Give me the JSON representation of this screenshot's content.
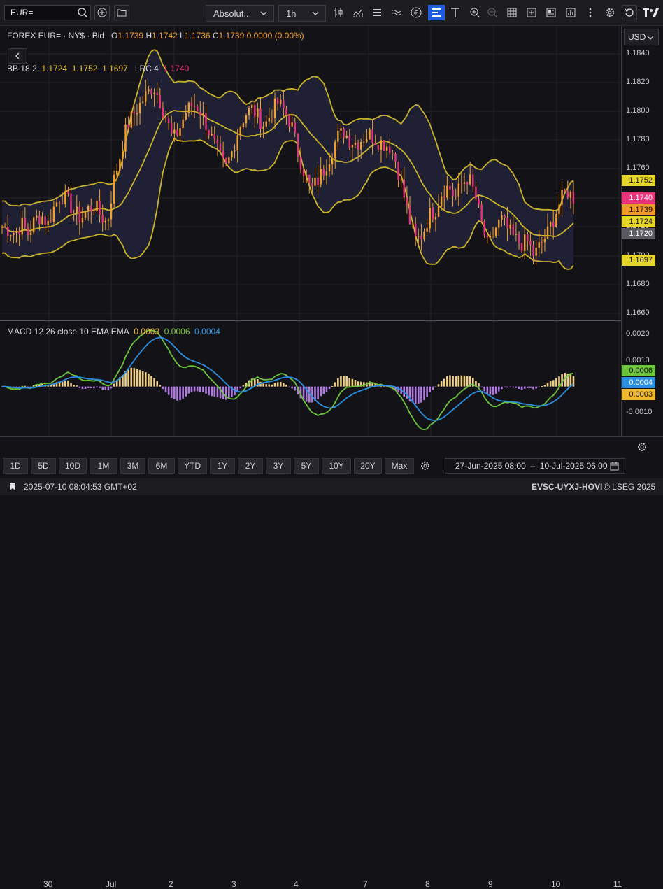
{
  "toolbar": {
    "symbol_value": "EUR=",
    "chart_type_label": "Absolut...",
    "interval_label": "1h"
  },
  "legend": {
    "instrument": "FOREX EUR= · NY$ · Bid",
    "o_label": "O",
    "o_value": "1.1739",
    "h_label": "H",
    "h_value": "1.1742",
    "l_label": "L",
    "l_value": "1.1736",
    "c_label": "C",
    "c_value": "1.1739",
    "change": "0.0000 (0.00%)",
    "bb_label": "BB 18 2",
    "bb_mid": "1.1724",
    "bb_upper": "1.1752",
    "bb_lower": "1.1697",
    "lrc_label": "LRC 4",
    "lrc_value": "1.1740",
    "macd_label": "MACD 12 26 close 10 EMA EMA",
    "macd_hist": "0.0003",
    "macd_line": "0.0006",
    "macd_signal": "0.0004"
  },
  "currency": "USD",
  "price_axis": [
    "1.1840",
    "1.1820",
    "1.1800",
    "1.1780",
    "1.1760",
    "1.1740",
    "1.1720",
    "1.1700",
    "1.1680",
    "1.1660"
  ],
  "macd_axis": [
    "0.0020",
    "0.0010",
    "0.0000",
    "-0.0010"
  ],
  "price_badges": [
    {
      "value": "1.1752",
      "color": "#e6d62a"
    },
    {
      "value": "1.1740",
      "color": "#e8337a"
    },
    {
      "value": "1.1739",
      "color": "#f09a2a"
    },
    {
      "value": "1.1724",
      "color": "#e6d62a"
    },
    {
      "value": "1.1720",
      "color": "#5a5a62"
    },
    {
      "value": "1.1697",
      "color": "#e6d62a"
    }
  ],
  "macd_badges": [
    {
      "value": "0.0006",
      "color": "#6cc43a"
    },
    {
      "value": "0.0004",
      "color": "#2a8fe0"
    },
    {
      "value": "0.0003",
      "color": "#f0b82a"
    }
  ],
  "x_axis": [
    "30",
    "Jul",
    "2",
    "3",
    "4",
    "7",
    "8",
    "9",
    "10",
    "11"
  ],
  "ranges": [
    "1D",
    "5D",
    "10D",
    "1M",
    "3M",
    "6M",
    "YTD",
    "1Y",
    "2Y",
    "3Y",
    "5Y",
    "10Y",
    "20Y",
    "Max"
  ],
  "date_from": "27-Jun-2025 08:00",
  "date_sep": "–",
  "date_to": "10-Jul-2025 06:00",
  "status": {
    "timestamp": "2025-07-10 08:04:53 GMT+02",
    "code": "EVSC-UYXJ-HOVI",
    "copyright": "© LSEG 2025"
  },
  "colors": {
    "candle": "#f0a030",
    "bollinger": "#c9b32a",
    "band_fill": "#1f2033",
    "lrc": "#e8337a",
    "macd": "#6cc43a",
    "signal": "#2a8fe0",
    "hist_pos": "#f0d080",
    "hist_neg": "#b07ae0"
  },
  "chart_data": {
    "type": "candlestick",
    "price_ylim": [
      1.1655,
      1.185
    ],
    "close_path": [
      1.172,
      1.1718,
      1.1716,
      1.1722,
      1.1715,
      1.1725,
      1.1728,
      1.1722,
      1.1735,
      1.1742,
      1.1738,
      1.173,
      1.1726,
      1.1732,
      1.1735,
      1.1728,
      1.1722,
      1.1752,
      1.177,
      1.179,
      1.1798,
      1.1805,
      1.1812,
      1.1818,
      1.1808,
      1.1795,
      1.178,
      1.1788,
      1.18,
      1.1805,
      1.1802,
      1.1792,
      1.178,
      1.177,
      1.176,
      1.1772,
      1.1788,
      1.1798,
      1.1802,
      1.1796,
      1.179,
      1.18,
      1.1806,
      1.18,
      1.1792,
      1.1772,
      1.1758,
      1.1745,
      1.1752,
      1.176,
      1.177,
      1.1782,
      1.1786,
      1.178,
      1.1778,
      1.1782,
      1.1784,
      1.178,
      1.1778,
      1.1776,
      1.1765,
      1.1745,
      1.1725,
      1.171,
      1.1715,
      1.1728,
      1.1732,
      1.1745,
      1.1748,
      1.174,
      1.175,
      1.1755,
      1.1742,
      1.1722,
      1.1705,
      1.1718,
      1.1725,
      1.1718,
      1.1712,
      1.1708,
      1.171,
      1.17,
      1.1708,
      1.1715,
      1.1726,
      1.1738,
      1.1745,
      1.174
    ]
  }
}
